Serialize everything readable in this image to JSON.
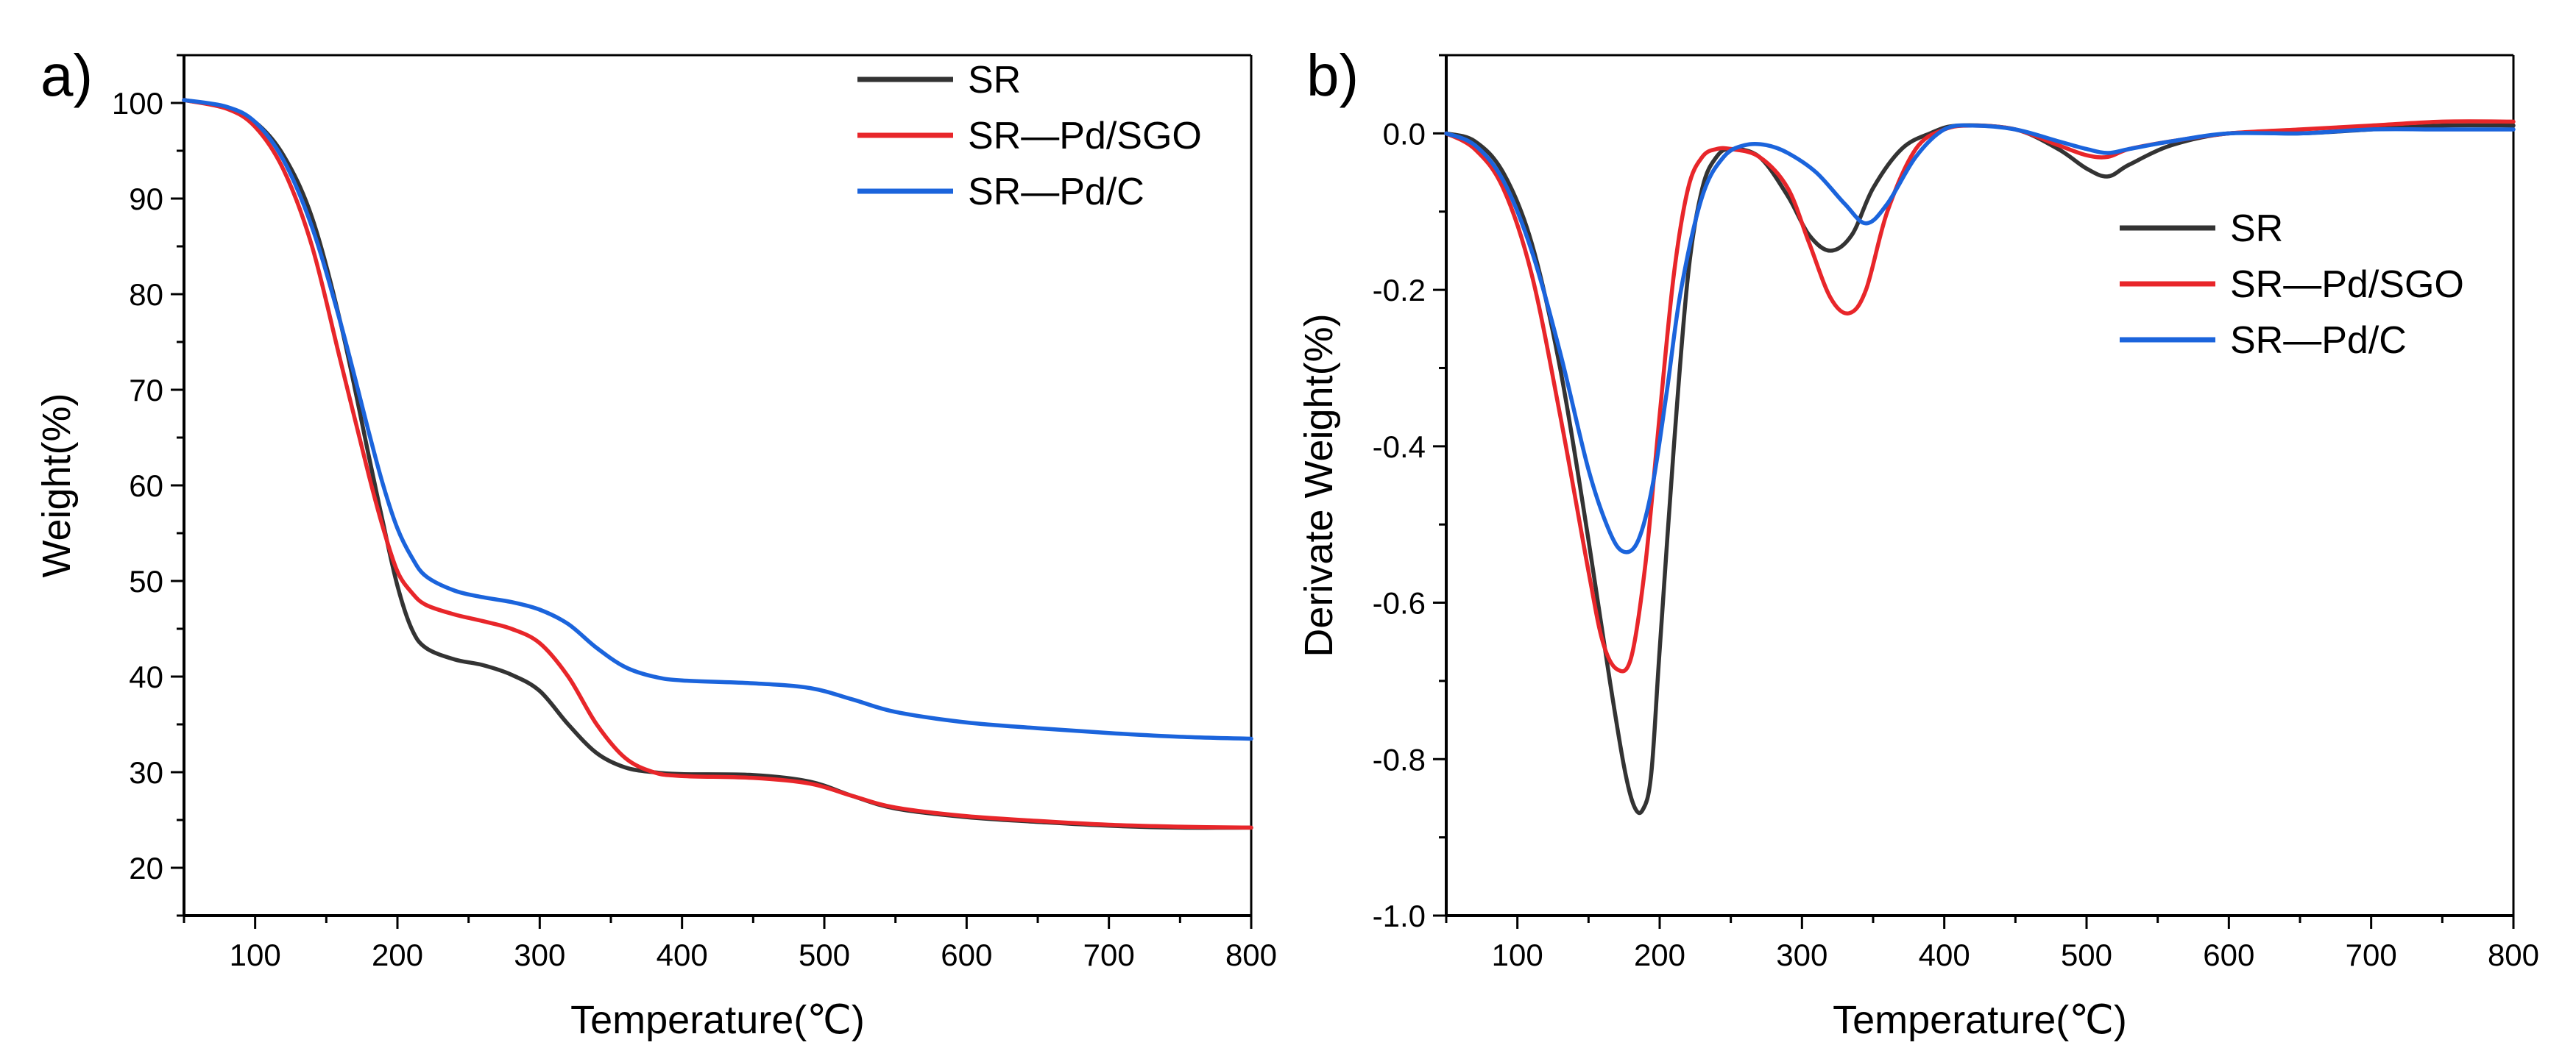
{
  "chart_data": [
    {
      "panel_label": "a)",
      "type": "line",
      "xlabel": "Temperature(℃)",
      "ylabel": "Weight(%)",
      "xlim": [
        50,
        800
      ],
      "ylim": [
        15,
        105
      ],
      "xticks": [
        100,
        200,
        300,
        400,
        500,
        600,
        700,
        800
      ],
      "xtick_labels": [
        "100",
        "200",
        "300",
        "400",
        "500",
        "600",
        "700",
        "800"
      ],
      "yticks": [
        20,
        30,
        40,
        50,
        60,
        70,
        80,
        90,
        100
      ],
      "ytick_labels": [
        "20",
        "30",
        "40",
        "50",
        "60",
        "70",
        "80",
        "90",
        "100"
      ],
      "legend_position": "top-right",
      "series": [
        {
          "name": "SR",
          "color": "#333333",
          "x": [
            50,
            80,
            100,
            120,
            140,
            160,
            180,
            190,
            200,
            210,
            220,
            240,
            260,
            280,
            300,
            320,
            340,
            360,
            380,
            400,
            450,
            490,
            520,
            550,
            600,
            650,
            700,
            750,
            800
          ],
          "y": [
            100.3,
            99.5,
            98.0,
            94.5,
            88.0,
            77.0,
            63.0,
            56.0,
            49.5,
            45.0,
            43.0,
            41.8,
            41.2,
            40.2,
            38.5,
            35.0,
            32.0,
            30.5,
            30.0,
            29.8,
            29.7,
            29.0,
            27.5,
            26.2,
            25.3,
            24.8,
            24.4,
            24.2,
            24.2
          ]
        },
        {
          "name": "SR—Pd/SGO",
          "color": "#e8262a",
          "x": [
            50,
            80,
            100,
            120,
            140,
            160,
            180,
            190,
            200,
            210,
            220,
            240,
            260,
            280,
            300,
            320,
            340,
            360,
            380,
            400,
            450,
            490,
            520,
            550,
            600,
            650,
            700,
            750,
            800
          ],
          "y": [
            100.3,
            99.4,
            97.5,
            93.0,
            85.0,
            73.0,
            61.0,
            55.5,
            51.0,
            48.8,
            47.5,
            46.5,
            45.8,
            45.0,
            43.5,
            40.0,
            35.0,
            31.5,
            30.0,
            29.6,
            29.4,
            28.8,
            27.5,
            26.3,
            25.4,
            24.9,
            24.5,
            24.3,
            24.2
          ]
        },
        {
          "name": "SR—Pd/C",
          "color": "#1b64dc",
          "x": [
            50,
            80,
            100,
            120,
            140,
            160,
            180,
            190,
            200,
            210,
            220,
            240,
            260,
            280,
            300,
            320,
            340,
            360,
            380,
            400,
            450,
            490,
            520,
            550,
            600,
            650,
            700,
            750,
            800
          ],
          "y": [
            100.3,
            99.6,
            98.0,
            94.0,
            87.0,
            77.0,
            65.5,
            60.0,
            55.5,
            52.5,
            50.5,
            49.0,
            48.3,
            47.8,
            47.0,
            45.5,
            43.0,
            41.0,
            40.0,
            39.6,
            39.3,
            38.8,
            37.6,
            36.3,
            35.2,
            34.6,
            34.1,
            33.7,
            33.5
          ]
        }
      ]
    },
    {
      "panel_label": "b)",
      "type": "line",
      "xlabel": "Temperature(℃)",
      "ylabel": "Derivate Weight(%)",
      "xlim": [
        50,
        800
      ],
      "ylim": [
        -1.0,
        0.1
      ],
      "xticks": [
        100,
        200,
        300,
        400,
        500,
        600,
        700,
        800
      ],
      "xtick_labels": [
        "100",
        "200",
        "300",
        "400",
        "500",
        "600",
        "700",
        "800"
      ],
      "yticks": [
        0.0,
        -0.2,
        -0.4,
        -0.6,
        -0.8,
        -1.0
      ],
      "ytick_labels": [
        "0.0",
        "-0.2",
        "-0.4",
        "-0.6",
        "-0.8",
        "-1.0"
      ],
      "legend_position": "upper-right",
      "series": [
        {
          "name": "SR",
          "color": "#333333",
          "x": [
            50,
            70,
            90,
            110,
            130,
            150,
            165,
            175,
            182,
            188,
            194,
            200,
            210,
            220,
            230,
            240,
            250,
            270,
            290,
            305,
            320,
            335,
            350,
            370,
            390,
            410,
            450,
            480,
            500,
            515,
            530,
            560,
            600,
            650,
            700,
            750,
            800
          ],
          "y": [
            0.0,
            -0.01,
            -0.05,
            -0.14,
            -0.3,
            -0.52,
            -0.7,
            -0.81,
            -0.86,
            -0.865,
            -0.82,
            -0.66,
            -0.4,
            -0.18,
            -0.07,
            -0.03,
            -0.02,
            -0.03,
            -0.08,
            -0.13,
            -0.15,
            -0.13,
            -0.07,
            -0.02,
            0.0,
            0.01,
            0.005,
            -0.02,
            -0.045,
            -0.055,
            -0.04,
            -0.015,
            0.0,
            0.0,
            0.005,
            0.01,
            0.01
          ]
        },
        {
          "name": "SR—Pd/SGO",
          "color": "#e8262a",
          "x": [
            50,
            70,
            90,
            110,
            130,
            150,
            160,
            170,
            180,
            190,
            200,
            210,
            220,
            230,
            240,
            250,
            270,
            290,
            305,
            320,
            333,
            345,
            360,
            380,
            400,
            420,
            450,
            480,
            500,
            515,
            530,
            560,
            600,
            650,
            700,
            750,
            800
          ],
          "y": [
            0.0,
            -0.02,
            -0.07,
            -0.18,
            -0.36,
            -0.56,
            -0.65,
            -0.685,
            -0.67,
            -0.55,
            -0.36,
            -0.18,
            -0.07,
            -0.03,
            -0.02,
            -0.02,
            -0.03,
            -0.07,
            -0.14,
            -0.21,
            -0.23,
            -0.2,
            -0.1,
            -0.02,
            0.005,
            0.01,
            0.005,
            -0.015,
            -0.028,
            -0.03,
            -0.02,
            -0.01,
            0.0,
            0.005,
            0.01,
            0.015,
            0.015
          ]
        },
        {
          "name": "SR—Pd/C",
          "color": "#1b64dc",
          "x": [
            50,
            70,
            90,
            110,
            130,
            150,
            165,
            175,
            185,
            195,
            205,
            215,
            230,
            245,
            260,
            275,
            290,
            310,
            330,
            345,
            360,
            380,
            400,
            420,
            450,
            480,
            500,
            515,
            530,
            560,
            600,
            650,
            700,
            750,
            800
          ],
          "y": [
            0.0,
            -0.015,
            -0.06,
            -0.15,
            -0.28,
            -0.43,
            -0.51,
            -0.535,
            -0.52,
            -0.45,
            -0.33,
            -0.2,
            -0.08,
            -0.03,
            -0.015,
            -0.015,
            -0.025,
            -0.05,
            -0.09,
            -0.115,
            -0.09,
            -0.03,
            0.005,
            0.01,
            0.005,
            -0.01,
            -0.02,
            -0.025,
            -0.02,
            -0.01,
            0.0,
            0.0,
            0.005,
            0.005,
            0.005
          ]
        }
      ]
    }
  ]
}
